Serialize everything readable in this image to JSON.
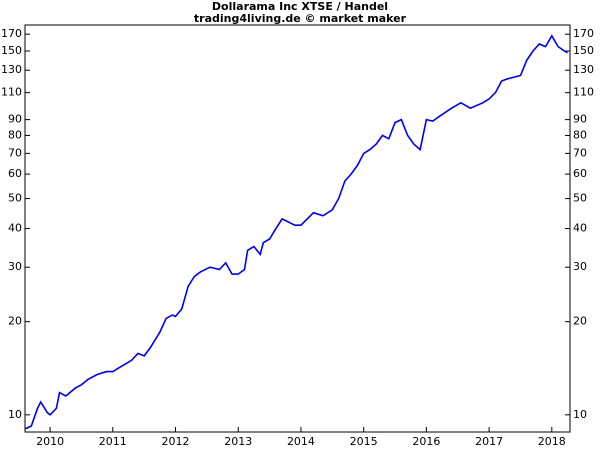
{
  "chart_data": {
    "type": "line",
    "title": "Dollarama Inc XTSE / Handel",
    "subtitle": "trading4living.de © market maker",
    "log_scale": true,
    "color": "#0000ee",
    "x": [
      2009.6,
      2009.7,
      2009.8,
      2009.85,
      2009.95,
      2010.0,
      2010.1,
      2010.15,
      2010.25,
      2010.4,
      2010.5,
      2010.6,
      2010.75,
      2010.9,
      2011.0,
      2011.1,
      2011.3,
      2011.4,
      2011.5,
      2011.6,
      2011.75,
      2011.85,
      2011.95,
      2012.0,
      2012.1,
      2012.2,
      2012.3,
      2012.4,
      2012.55,
      2012.7,
      2012.8,
      2012.9,
      2013.0,
      2013.1,
      2013.15,
      2013.25,
      2013.35,
      2013.4,
      2013.5,
      2013.6,
      2013.7,
      2013.8,
      2013.9,
      2014.0,
      2014.1,
      2014.2,
      2014.35,
      2014.5,
      2014.6,
      2014.7,
      2014.8,
      2014.9,
      2015.0,
      2015.1,
      2015.2,
      2015.3,
      2015.4,
      2015.5,
      2015.6,
      2015.7,
      2015.8,
      2015.9,
      2016.0,
      2016.1,
      2016.2,
      2016.4,
      2016.55,
      2016.7,
      2016.9,
      2017.0,
      2017.1,
      2017.2,
      2017.3,
      2017.5,
      2017.6,
      2017.7,
      2017.8,
      2017.9,
      2018.0,
      2018.1,
      2018.2,
      2018.25
    ],
    "values": [
      9.0,
      9.2,
      10.5,
      11.0,
      10.2,
      10.0,
      10.5,
      11.8,
      11.5,
      12.2,
      12.5,
      13,
      13.5,
      13.8,
      13.8,
      14.2,
      15,
      15.8,
      15.5,
      16.5,
      18.5,
      20.5,
      21,
      20.8,
      22,
      26,
      28,
      29,
      30,
      29.5,
      31,
      28.5,
      28.5,
      29.5,
      34,
      35,
      33,
      36,
      37,
      40,
      43,
      42,
      41,
      41,
      43,
      45,
      44,
      46,
      50,
      57,
      60,
      64,
      70,
      72,
      75,
      80,
      78,
      88,
      90,
      80,
      75,
      72,
      90,
      89,
      92,
      98,
      102,
      98,
      102,
      105,
      110,
      120,
      122,
      125,
      140,
      150,
      158,
      155,
      168,
      155,
      150,
      148
    ],
    "xlim": [
      2009.6,
      2018.29
    ],
    "xticks": [
      2010,
      2011,
      2012,
      2013,
      2014,
      2015,
      2016,
      2017,
      2018
    ],
    "ylim": [
      8.8,
      182
    ],
    "yticks": [
      10,
      20,
      30,
      40,
      50,
      60,
      70,
      80,
      90,
      110,
      130,
      150,
      170
    ]
  }
}
